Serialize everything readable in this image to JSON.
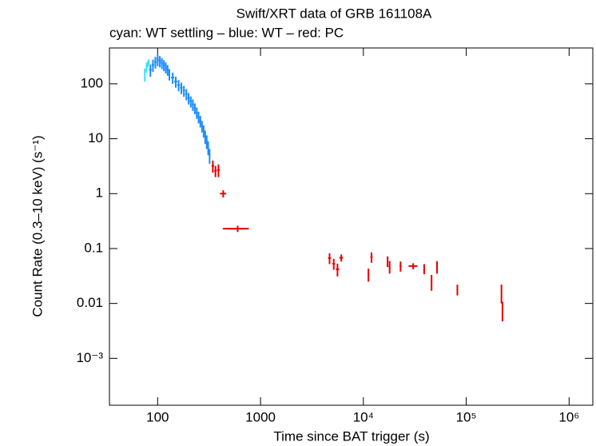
{
  "chart_data": {
    "type": "errorbar-scatter",
    "title": "Swift/XRT data of GRB 161108A",
    "subtitle": "cyan: WT settling – blue: WT – red: PC",
    "xlabel": "Time since BAT trigger (s)",
    "ylabel": "Count Rate (0.3–10 keV) (s⁻¹)",
    "xscale": "log",
    "yscale": "log",
    "xlim": [
      34,
      1700000
    ],
    "ylim": [
      0.00014,
      450
    ],
    "xticks": [
      100,
      1000,
      {
        "value": 10000,
        "label": "10⁴"
      },
      {
        "value": 100000,
        "label": "10⁵"
      },
      {
        "value": 1000000,
        "label": "10⁶"
      }
    ],
    "yticks": [
      {
        "value": 0.001,
        "label": "10⁻³"
      },
      0.01,
      0.1,
      1,
      10,
      100
    ],
    "series": [
      {
        "color": "#33e6f2",
        "x": [
          75,
          78,
          80,
          82
        ],
        "xerr": [
          1,
          1,
          1,
          1
        ],
        "values": [
          150,
          200,
          230,
          250
        ],
        "yerr": [
          40,
          40,
          30,
          30
        ]
      },
      {
        "color": "#1a8cff",
        "x": [
          85,
          90,
          95,
          100,
          105,
          110,
          115,
          120,
          125,
          130,
          140,
          150,
          160,
          170,
          180,
          190,
          200,
          210,
          220,
          230,
          240,
          250,
          260,
          270,
          280,
          290,
          300,
          310,
          320
        ],
        "xerr": [
          2.5,
          2.5,
          2.5,
          2.5,
          2.5,
          2.5,
          2.5,
          2.5,
          2.5,
          2.5,
          5,
          5,
          5,
          5,
          5,
          5,
          5,
          5,
          5,
          5,
          5,
          5,
          5,
          5,
          5,
          5,
          5,
          5,
          5
        ],
        "values": [
          180,
          220,
          250,
          280,
          260,
          240,
          220,
          200,
          180,
          150,
          130,
          110,
          95,
          85,
          75,
          65,
          55,
          48,
          42,
          36,
          30,
          25,
          21,
          17,
          14,
          11,
          9,
          7,
          5
        ],
        "yerr": [
          45,
          55,
          60,
          70,
          60,
          55,
          50,
          45,
          40,
          35,
          30,
          25,
          22,
          20,
          17,
          15,
          13,
          11,
          10,
          8,
          7,
          6,
          5,
          4,
          3.5,
          3,
          2.5,
          2,
          1.5
        ]
      },
      {
        "color": "#e60000",
        "x": [
          344,
          365,
          390,
          434,
          600,
          4690,
          5150,
          5600,
          6100,
          11200,
          12000,
          17200,
          18000,
          23000,
          30500,
          39000,
          46000,
          52000,
          82000,
          220000,
          225000
        ],
        "xerr": [
          10,
          10,
          12,
          30,
          170,
          150,
          150,
          200,
          250,
          200,
          300,
          300,
          300,
          500,
          3000,
          600,
          800,
          1000,
          1500,
          1000,
          1000
        ],
        "values": [
          3.2,
          2.6,
          2.7,
          1.0,
          0.23,
          0.067,
          0.053,
          0.042,
          0.068,
          0.034,
          0.07,
          0.059,
          0.047,
          0.048,
          0.048,
          0.043,
          0.025,
          0.047,
          0.018,
          0.016,
          0.0077
        ],
        "yerr": [
          0.8,
          0.6,
          0.7,
          0.15,
          0.03,
          0.015,
          0.012,
          0.011,
          0.01,
          0.009,
          0.015,
          0.013,
          0.012,
          0.01,
          0.006,
          0.009,
          0.008,
          0.012,
          0.004,
          0.006,
          0.003
        ]
      }
    ]
  }
}
